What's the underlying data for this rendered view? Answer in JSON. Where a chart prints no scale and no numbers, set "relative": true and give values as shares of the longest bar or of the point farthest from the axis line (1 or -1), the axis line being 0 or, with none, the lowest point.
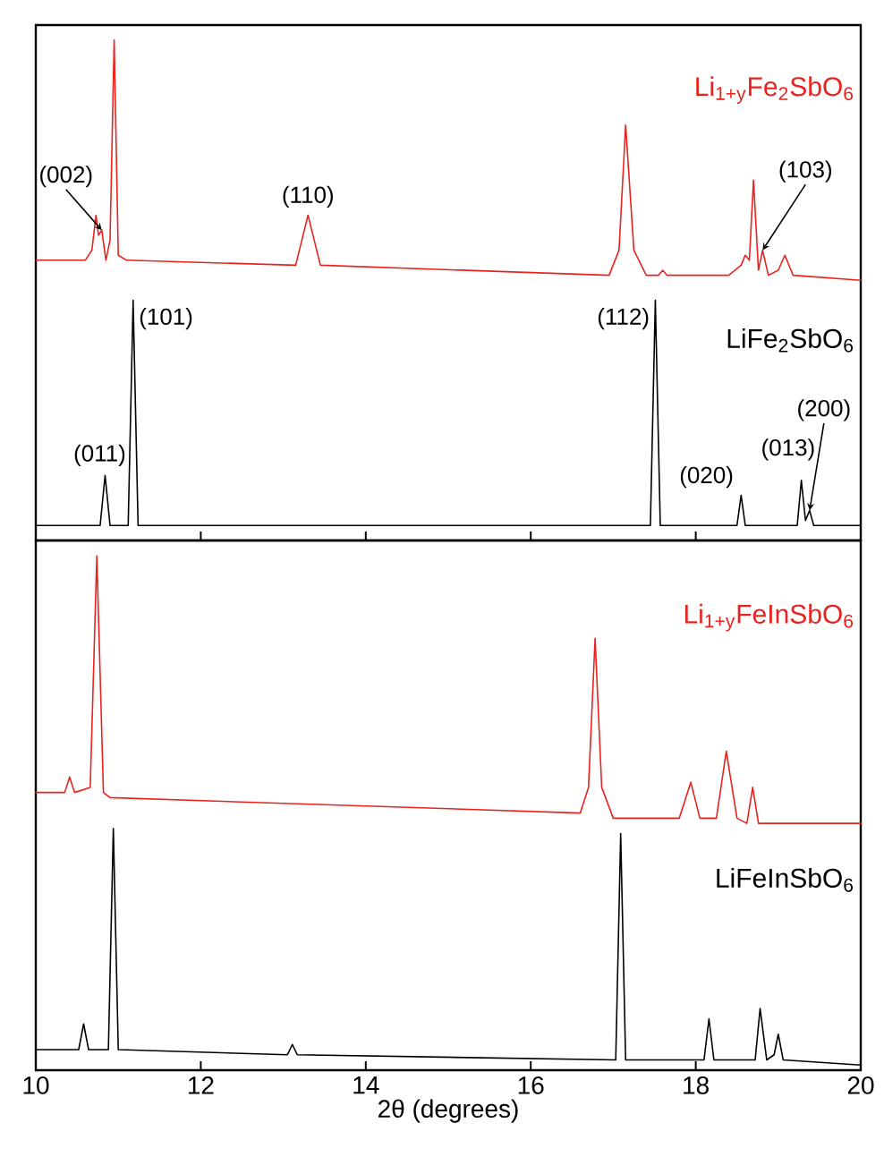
{
  "chart_data": [
    {
      "type": "line",
      "relative": true,
      "xlim": [
        10,
        20
      ],
      "xticks": [
        10,
        12,
        14,
        16,
        18,
        20
      ],
      "tick_labels": false,
      "series": [
        {
          "name": "Li$_{1+y}$Fe$_{2}$SbO$_{6}$",
          "color": "#e8231f",
          "x": [
            10.0,
            10.6,
            10.68,
            10.73,
            10.76,
            10.8,
            10.85,
            10.9,
            10.95,
            11.0,
            11.1,
            13.15,
            13.3,
            13.45,
            16.95,
            17.07,
            17.15,
            17.25,
            17.4,
            17.55,
            17.6,
            17.65,
            18.4,
            18.55,
            18.6,
            18.65,
            18.7,
            18.76,
            18.81,
            18.88,
            19.0,
            19.08,
            19.18,
            20.0
          ],
          "values": [
            0.56,
            0.56,
            0.58,
            0.65,
            0.61,
            0.62,
            0.56,
            0.6,
            1.0,
            0.57,
            0.56,
            0.55,
            0.65,
            0.55,
            0.53,
            0.58,
            0.83,
            0.58,
            0.53,
            0.53,
            0.54,
            0.53,
            0.53,
            0.55,
            0.57,
            0.56,
            0.72,
            0.54,
            0.58,
            0.53,
            0.54,
            0.57,
            0.53,
            0.52
          ]
        },
        {
          "name": "LiFe$_{2}$SbO$_{6}$",
          "color": "#000000",
          "x": [
            10.0,
            10.78,
            10.84,
            10.9,
            11.12,
            11.18,
            11.24,
            17.45,
            17.51,
            17.57,
            18.5,
            18.55,
            18.6,
            19.23,
            19.28,
            19.33,
            19.38,
            19.43,
            20.0
          ],
          "values": [
            0.03,
            0.03,
            0.13,
            0.03,
            0.03,
            0.48,
            0.03,
            0.03,
            0.48,
            0.03,
            0.03,
            0.09,
            0.03,
            0.03,
            0.12,
            0.04,
            0.06,
            0.03,
            0.03
          ]
        }
      ],
      "annotations": [
        {
          "text": "(002)",
          "x": 10.8,
          "y": 0.62
        },
        {
          "text": "(110)",
          "x": 13.3,
          "y": 0.65
        },
        {
          "text": "(103)",
          "x": 18.81,
          "y": 0.58
        },
        {
          "text": "(011)",
          "x": 10.84,
          "y": 0.13
        },
        {
          "text": "(101)",
          "x": 11.18,
          "y": 0.48
        },
        {
          "text": "(112)",
          "x": 17.51,
          "y": 0.48
        },
        {
          "text": "(020)",
          "x": 18.55,
          "y": 0.09
        },
        {
          "text": "(013)",
          "x": 19.28,
          "y": 0.12
        },
        {
          "text": "(200)",
          "x": 19.38,
          "y": 0.06
        }
      ]
    },
    {
      "type": "line",
      "relative": true,
      "xlim": [
        10,
        20
      ],
      "xticks": [
        10,
        12,
        14,
        16,
        18,
        20
      ],
      "tick_labels": "x",
      "xlabel": "2θ (degrees)",
      "series": [
        {
          "name": "Li$_{1+y}$FeInSbO$_{6}$",
          "color": "#e8231f",
          "x": [
            10.0,
            10.35,
            10.41,
            10.47,
            10.66,
            10.74,
            10.82,
            10.9,
            16.6,
            16.7,
            16.78,
            16.86,
            17.0,
            17.8,
            17.94,
            18.05,
            18.25,
            18.37,
            18.5,
            18.62,
            18.69,
            18.76,
            20.0
          ],
          "values": [
            0.54,
            0.54,
            0.57,
            0.54,
            0.55,
            1.0,
            0.54,
            0.53,
            0.5,
            0.55,
            0.84,
            0.55,
            0.49,
            0.49,
            0.56,
            0.49,
            0.49,
            0.62,
            0.49,
            0.48,
            0.55,
            0.48,
            0.48
          ]
        },
        {
          "name": "LiFeInSbO$_{6}$",
          "color": "#000000",
          "x": [
            10.0,
            10.52,
            10.58,
            10.64,
            10.88,
            10.94,
            11.0,
            13.05,
            13.11,
            13.17,
            17.03,
            17.09,
            17.15,
            18.1,
            18.16,
            18.22,
            18.72,
            18.78,
            18.86,
            18.95,
            19.0,
            19.06,
            20.0
          ],
          "values": [
            0.04,
            0.04,
            0.09,
            0.04,
            0.04,
            0.47,
            0.04,
            0.03,
            0.05,
            0.03,
            0.02,
            0.46,
            0.02,
            0.02,
            0.1,
            0.02,
            0.02,
            0.12,
            0.02,
            0.03,
            0.07,
            0.02,
            0.01
          ]
        }
      ]
    }
  ]
}
